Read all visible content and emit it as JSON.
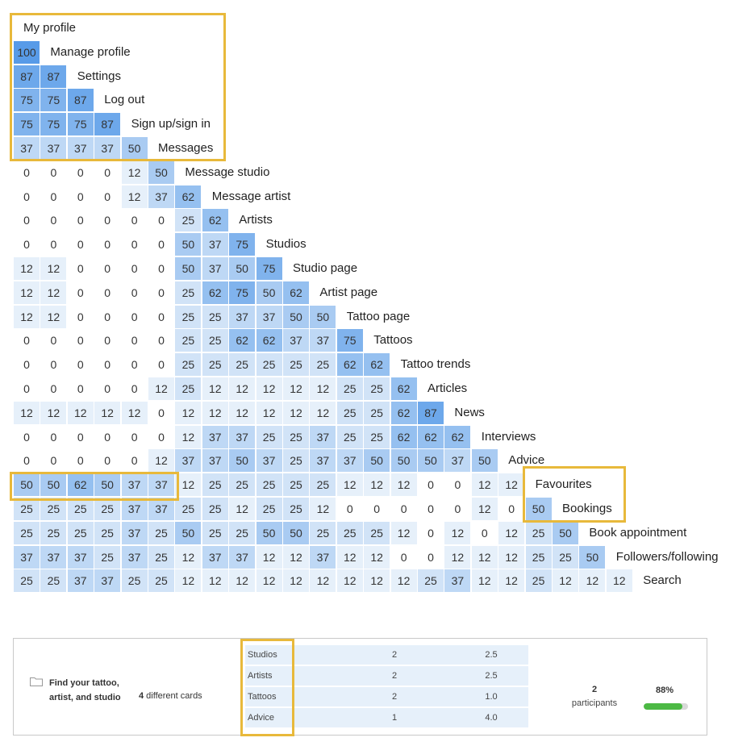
{
  "colors": {
    "highlight": "#e8b93b",
    "cell_light": "#e6f0fa",
    "cell_strong": "#5c9ee9",
    "progress": "#4cb944"
  },
  "chart_data": {
    "type": "heatmap",
    "title": "",
    "rows": [
      {
        "label": "My profile",
        "values": []
      },
      {
        "label": "Manage profile",
        "values": [
          100
        ]
      },
      {
        "label": "Settings",
        "values": [
          87,
          87
        ]
      },
      {
        "label": "Log out",
        "values": [
          75,
          75,
          87
        ]
      },
      {
        "label": "Sign up/sign in",
        "values": [
          75,
          75,
          75,
          87
        ]
      },
      {
        "label": "Messages",
        "values": [
          37,
          37,
          37,
          37,
          50
        ]
      },
      {
        "label": "Message studio",
        "values": [
          0,
          0,
          0,
          0,
          12,
          50
        ]
      },
      {
        "label": "Message artist",
        "values": [
          0,
          0,
          0,
          0,
          12,
          37,
          62
        ]
      },
      {
        "label": "Artists",
        "values": [
          0,
          0,
          0,
          0,
          0,
          0,
          25,
          62
        ]
      },
      {
        "label": "Studios",
        "values": [
          0,
          0,
          0,
          0,
          0,
          0,
          50,
          37,
          75
        ]
      },
      {
        "label": "Studio page",
        "values": [
          12,
          12,
          0,
          0,
          0,
          0,
          50,
          37,
          50,
          75
        ]
      },
      {
        "label": "Artist page",
        "values": [
          12,
          12,
          0,
          0,
          0,
          0,
          25,
          62,
          75,
          50,
          62
        ]
      },
      {
        "label": "Tattoo page",
        "values": [
          12,
          12,
          0,
          0,
          0,
          0,
          25,
          25,
          37,
          37,
          50,
          50
        ]
      },
      {
        "label": "Tattoos",
        "values": [
          0,
          0,
          0,
          0,
          0,
          0,
          25,
          25,
          62,
          62,
          37,
          37,
          75
        ]
      },
      {
        "label": "Tattoo trends",
        "values": [
          0,
          0,
          0,
          0,
          0,
          0,
          25,
          25,
          25,
          25,
          25,
          25,
          62,
          62
        ]
      },
      {
        "label": "Articles",
        "values": [
          0,
          0,
          0,
          0,
          0,
          12,
          25,
          12,
          12,
          12,
          12,
          12,
          25,
          25,
          62
        ]
      },
      {
        "label": "News",
        "values": [
          12,
          12,
          12,
          12,
          12,
          0,
          12,
          12,
          12,
          12,
          12,
          12,
          25,
          25,
          62,
          87
        ]
      },
      {
        "label": "Interviews",
        "values": [
          0,
          0,
          0,
          0,
          0,
          0,
          12,
          37,
          37,
          25,
          25,
          37,
          25,
          25,
          62,
          62,
          62
        ]
      },
      {
        "label": "Advice",
        "values": [
          0,
          0,
          0,
          0,
          0,
          12,
          37,
          37,
          50,
          37,
          25,
          37,
          37,
          50,
          50,
          50,
          37,
          50
        ]
      },
      {
        "label": "Favourites",
        "values": [
          50,
          50,
          62,
          50,
          37,
          37,
          12,
          25,
          25,
          25,
          25,
          25,
          12,
          12,
          12,
          0,
          0,
          12,
          12
        ]
      },
      {
        "label": "Bookings",
        "values": [
          25,
          25,
          25,
          25,
          37,
          37,
          25,
          25,
          12,
          25,
          25,
          12,
          0,
          0,
          0,
          0,
          0,
          12,
          0,
          50
        ]
      },
      {
        "label": "Book appointment",
        "values": [
          25,
          25,
          25,
          25,
          37,
          25,
          50,
          25,
          25,
          50,
          50,
          25,
          25,
          25,
          12,
          0,
          12,
          0,
          12,
          25,
          50
        ]
      },
      {
        "label": "Followers/following",
        "values": [
          37,
          37,
          37,
          25,
          37,
          25,
          12,
          37,
          37,
          12,
          12,
          37,
          12,
          12,
          0,
          0,
          12,
          12,
          12,
          25,
          25,
          50
        ]
      },
      {
        "label": "Search",
        "values": [
          25,
          25,
          37,
          37,
          25,
          25,
          12,
          12,
          12,
          12,
          12,
          12,
          12,
          12,
          12,
          25,
          37,
          12,
          12,
          25,
          12,
          12,
          12
        ]
      }
    ],
    "value_range": [
      0,
      100
    ]
  },
  "card": {
    "title": "Find your tattoo, artist, and studio",
    "count_number": "4",
    "count_label": " different cards",
    "categories": [
      {
        "name": "Studios",
        "cards": "2",
        "avg": "2.5"
      },
      {
        "name": "Artists",
        "cards": "2",
        "avg": "2.5"
      },
      {
        "name": "Tattoos",
        "cards": "2",
        "avg": "1.0"
      },
      {
        "name": "Advice",
        "cards": "1",
        "avg": "4.0"
      }
    ],
    "participants_number": "2",
    "participants_label": "participants",
    "agreement_label": "88%",
    "agreement_fraction": 0.88,
    "folder_icon": "folder-icon"
  }
}
